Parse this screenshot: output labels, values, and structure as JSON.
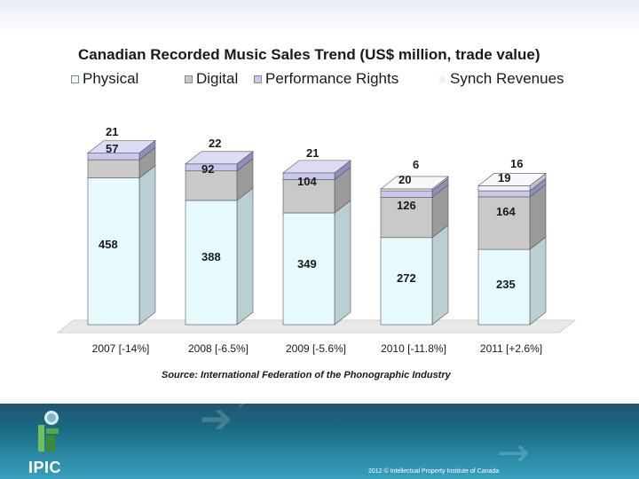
{
  "chart_data": {
    "type": "bar",
    "stacked": true,
    "title": "Canadian Recorded Music Sales Trend (US$ million, trade value)",
    "categories": [
      "2007 [-14%]",
      "2008 [-6.5%]",
      "2009 [-5.6%]",
      "2010 [-11.8%]",
      "2011 [+2.6%]"
    ],
    "series": [
      {
        "name": "Physical",
        "values": [
          458,
          388,
          349,
          272,
          235
        ],
        "color": "#e6fafd",
        "side": "#b9cfd4",
        "top": "#f3fdfe"
      },
      {
        "name": "Digital",
        "values": [
          57,
          92,
          104,
          126,
          164
        ],
        "color": "#c9c9c9",
        "side": "#9a9a9a",
        "top": "#e0e0e0"
      },
      {
        "name": "Performance Rights",
        "values": [
          21,
          22,
          21,
          20,
          19
        ],
        "color": "#c8c8ec",
        "side": "#8f8fbf",
        "top": "#dcdcf4"
      },
      {
        "name": "Synch Revenues",
        "values": [
          null,
          null,
          null,
          6,
          16
        ],
        "color": "#f0f0f8",
        "side": "#c0c0d0",
        "top": "#f7f7fc"
      }
    ],
    "legend_position": "top",
    "three_d": true,
    "source": "Source:  International Federation of the Phonographic Industry"
  },
  "footer": {
    "logo_text": "IPIC",
    "copyright": "2012 © Intellectual Property Institute of Canada"
  }
}
